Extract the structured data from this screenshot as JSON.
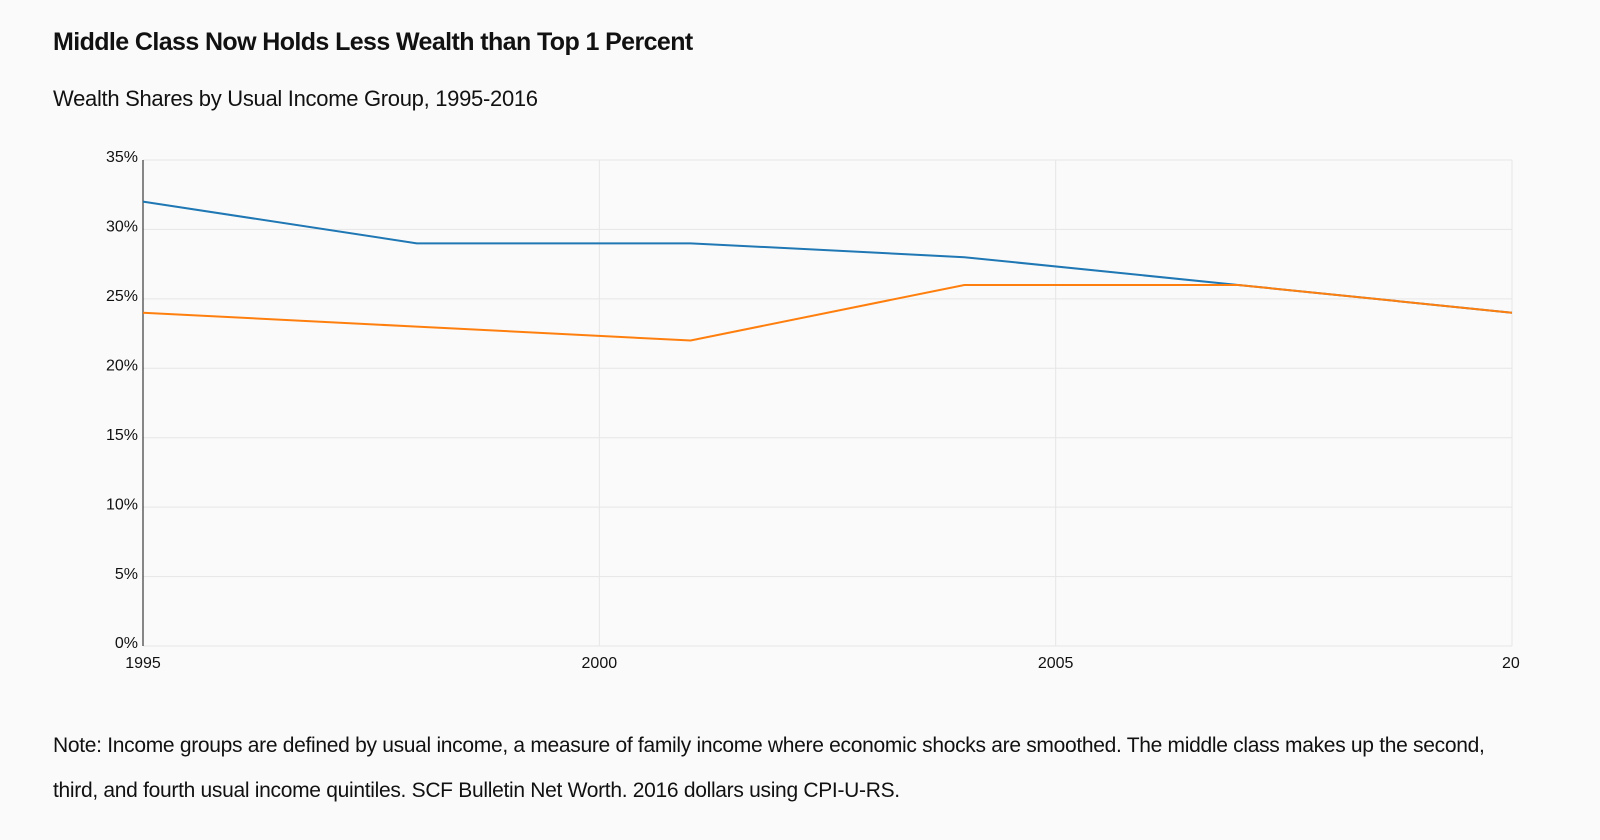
{
  "chart_data": {
    "type": "line",
    "title": "Middle Class Now Holds Less Wealth than Top 1 Percent",
    "subtitle": "Wealth Shares by Usual Income Group, 1995-2016",
    "note": "Note: Income groups are defined by usual income, a measure of family income where economic shocks are smoothed. The middle class makes up the second, third, and fourth usual income quintiles. SCF Bulletin Net Worth. 2016 dollars using CPI-U-RS.",
    "x": [
      1995,
      1998,
      2001,
      2004,
      2007,
      2010
    ],
    "series": [
      {
        "color": "#1f77b4",
        "values": [
          32,
          29,
          29,
          28,
          26,
          24
        ]
      },
      {
        "color": "#ff7f0e",
        "values": [
          24,
          23,
          22,
          26,
          26,
          24
        ]
      }
    ],
    "xlim": [
      1995,
      2010
    ],
    "xticks": [
      1995,
      2000,
      2005,
      {
        "value": 2010,
        "label": "20"
      }
    ],
    "ylim": [
      0,
      35
    ],
    "yticks": [
      {
        "value": 0,
        "label": "0%"
      },
      {
        "value": 5,
        "label": "5%"
      },
      {
        "value": 10,
        "label": "10%"
      },
      {
        "value": 15,
        "label": "15%"
      },
      {
        "value": 20,
        "label": "20%"
      },
      {
        "value": 25,
        "label": "25%"
      },
      {
        "value": 30,
        "label": "30%"
      },
      {
        "value": 35,
        "label": "35%"
      }
    ],
    "grid": true
  }
}
